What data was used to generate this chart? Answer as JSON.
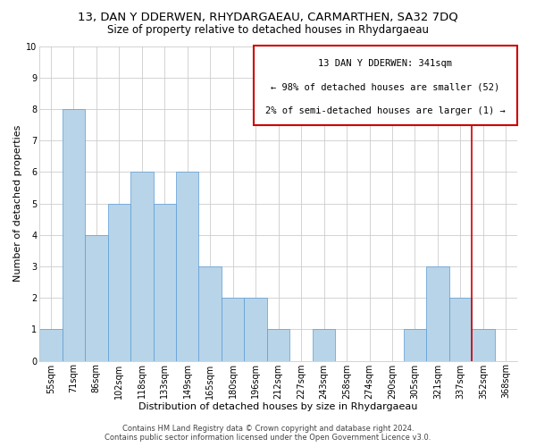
{
  "title": "13, DAN Y DDERWEN, RHYDARGAEAU, CARMARTHEN, SA32 7DQ",
  "subtitle": "Size of property relative to detached houses in Rhydargaeau",
  "xlabel": "Distribution of detached houses by size in Rhydargaeau",
  "ylabel": "Number of detached properties",
  "bin_labels": [
    "55sqm",
    "71sqm",
    "86sqm",
    "102sqm",
    "118sqm",
    "133sqm",
    "149sqm",
    "165sqm",
    "180sqm",
    "196sqm",
    "212sqm",
    "227sqm",
    "243sqm",
    "258sqm",
    "274sqm",
    "290sqm",
    "305sqm",
    "321sqm",
    "337sqm",
    "352sqm",
    "368sqm"
  ],
  "bar_heights": [
    1,
    8,
    4,
    5,
    6,
    5,
    6,
    3,
    2,
    2,
    1,
    0,
    1,
    0,
    0,
    0,
    1,
    3,
    2,
    1,
    0
  ],
  "bar_color": "#b8d4e8",
  "bar_edgecolor": "#5b9bd5",
  "bar_edgewidth": 0.5,
  "grid_color": "#cccccc",
  "vline_color": "#cc0000",
  "vline_x_index": 18,
  "box_text_line1": "13 DAN Y DDERWEN: 341sqm",
  "box_text_line2": "← 98% of detached houses are smaller (52)",
  "box_text_line3": "2% of semi-detached houses are larger (1) →",
  "box_color": "#cc0000",
  "box_fill": "#ffffff",
  "ylim": [
    0,
    10
  ],
  "yticks": [
    0,
    1,
    2,
    3,
    4,
    5,
    6,
    7,
    8,
    9,
    10
  ],
  "footer1": "Contains HM Land Registry data © Crown copyright and database right 2024.",
  "footer2": "Contains public sector information licensed under the Open Government Licence v3.0.",
  "background_color": "#ffffff",
  "title_fontsize": 9.5,
  "subtitle_fontsize": 8.5,
  "axis_label_fontsize": 8,
  "tick_fontsize": 7,
  "footer_fontsize": 6,
  "annotation_fontsize": 7.5
}
